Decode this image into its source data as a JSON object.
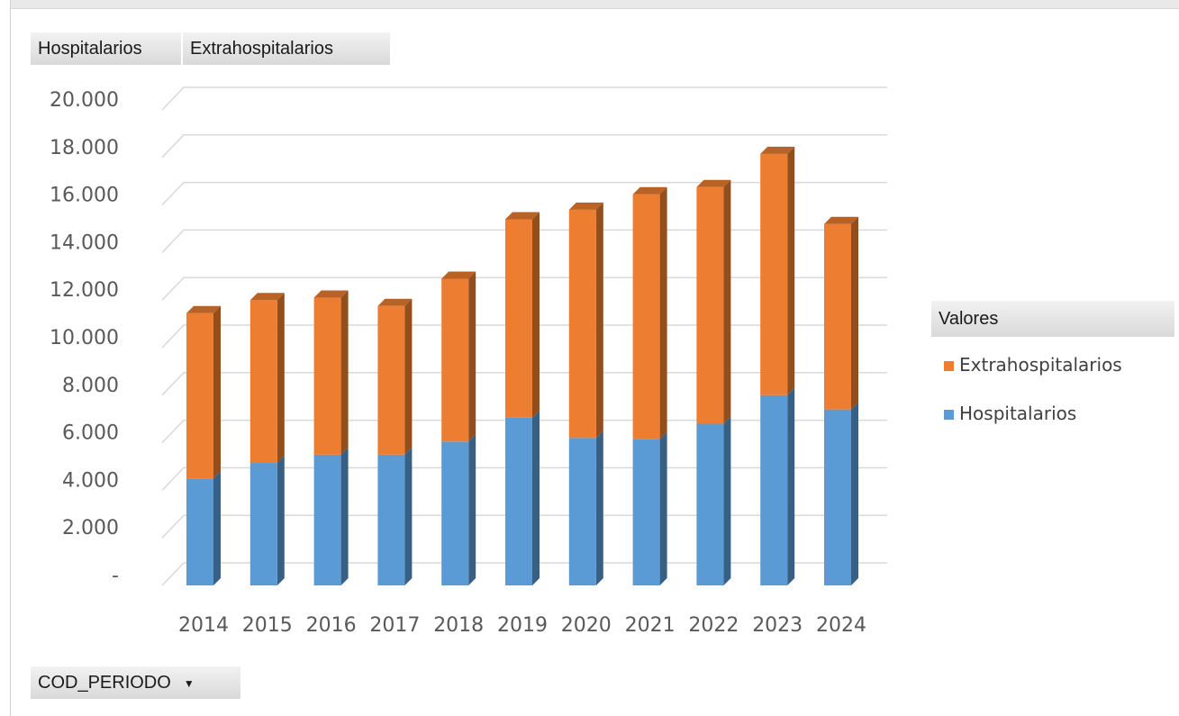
{
  "field_buttons": {
    "hospitalarios": "Hospitalarios",
    "extrahospitalarios": "Extrahospitalarios",
    "period": "COD_PERIODO"
  },
  "legend": {
    "title": "Valores",
    "items": [
      {
        "label": "Extrahospitalarios",
        "color": "#ed7d31"
      },
      {
        "label": "Hospitalarios",
        "color": "#5b9bd5"
      }
    ]
  },
  "chart_data": {
    "type": "bar",
    "stacked": true,
    "style": "3d",
    "categories": [
      "2014",
      "2015",
      "2016",
      "2017",
      "2018",
      "2019",
      "2020",
      "2021",
      "2022",
      "2023",
      "2024"
    ],
    "series": [
      {
        "name": "Hospitalarios",
        "color": "#5b9bd5",
        "values": [
          4500,
          5150,
          5500,
          5500,
          6050,
          7050,
          6200,
          6150,
          6800,
          8000,
          7400
        ]
      },
      {
        "name": "Extrahospitalarios",
        "color": "#ed7d31",
        "values": [
          6950,
          6850,
          6600,
          6250,
          6850,
          8350,
          9600,
          10300,
          9950,
          10150,
          7800
        ]
      }
    ],
    "ylim": [
      0,
      20000
    ],
    "yticks": [
      "-",
      "2.000",
      "4.000",
      "6.000",
      "8.000",
      "10.000",
      "12.000",
      "14.000",
      "16.000",
      "18.000",
      "20.000"
    ],
    "grid": true,
    "legend_position": "right"
  }
}
